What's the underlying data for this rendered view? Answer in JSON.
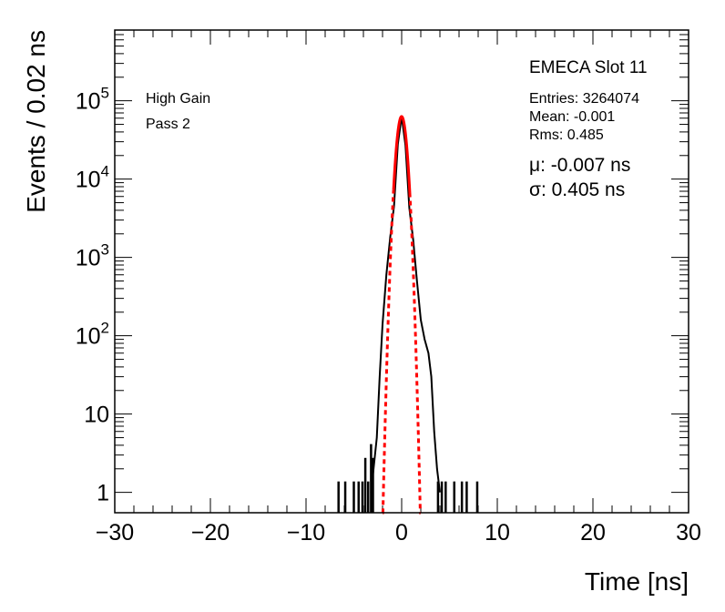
{
  "chart_data": {
    "type": "histogram",
    "title": "",
    "xlabel": "Time [ns]",
    "ylabel": "Events / 0.02 ns",
    "xlim": [
      -30,
      30
    ],
    "ylim": [
      0.55,
      800000
    ],
    "y_scale": "log",
    "x_ticks": [
      "−30",
      "−20",
      "−10",
      "0",
      "10",
      "20",
      "30"
    ],
    "x_tick_values": [
      -30,
      -20,
      -10,
      0,
      10,
      20,
      30
    ],
    "y_tick_labels": [
      {
        "base": "10",
        "exp": "5",
        "value": 100000
      },
      {
        "base": "10",
        "exp": "4",
        "value": 10000
      },
      {
        "base": "10",
        "exp": "3",
        "value": 1000
      },
      {
        "base": "10",
        "exp": "2",
        "value": 100
      },
      {
        "base": "10",
        "exp": "",
        "value": 10
      },
      {
        "base": "1",
        "exp": "",
        "value": 1
      }
    ],
    "annotations": {
      "gain": "High Gain",
      "pass": "Pass 2",
      "slot": "EMECA Slot 11",
      "entries": "Entries: 3264074",
      "mean": "Mean: -0.001",
      "rms": "Rms: 0.485",
      "mu": "μ: -0.007 ns",
      "sigma": "σ: 0.405 ns"
    },
    "fit": {
      "function": "gaussian",
      "amplitude": 63000,
      "mean": -0.007,
      "sigma": 0.405,
      "color": "#ff0000",
      "solid_range": [
        -0.85,
        0.85
      ],
      "dashed_range": [
        -2.0,
        2.0
      ]
    },
    "histogram": {
      "color": "#000000",
      "profile": [
        [
          -3.2,
          1
        ],
        [
          -2.6,
          5
        ],
        [
          -2.3,
          30
        ],
        [
          -2.0,
          140
        ],
        [
          -1.6,
          600
        ],
        [
          -1.2,
          1800
        ],
        [
          -0.8,
          4500
        ],
        [
          -0.4,
          28000
        ],
        [
          0.0,
          63000
        ],
        [
          0.4,
          27000
        ],
        [
          0.8,
          4300
        ],
        [
          1.2,
          1700
        ],
        [
          1.6,
          500
        ],
        [
          2.0,
          160
        ],
        [
          2.4,
          90
        ],
        [
          2.8,
          60
        ],
        [
          3.1,
          30
        ],
        [
          3.4,
          6
        ],
        [
          3.7,
          2
        ],
        [
          4.0,
          1
        ]
      ],
      "isolated_spikes": [
        [
          -6.6,
          1
        ],
        [
          -5.9,
          1
        ],
        [
          -5.0,
          1
        ],
        [
          -4.5,
          1
        ],
        [
          -4.1,
          1
        ],
        [
          -3.8,
          2
        ],
        [
          -3.5,
          1
        ],
        [
          -3.2,
          3
        ],
        [
          -3.0,
          2
        ],
        [
          3.8,
          1
        ],
        [
          4.2,
          1
        ],
        [
          4.6,
          1
        ],
        [
          5.5,
          1
        ],
        [
          6.3,
          1
        ],
        [
          6.8,
          1
        ],
        [
          7.9,
          1
        ]
      ]
    }
  }
}
